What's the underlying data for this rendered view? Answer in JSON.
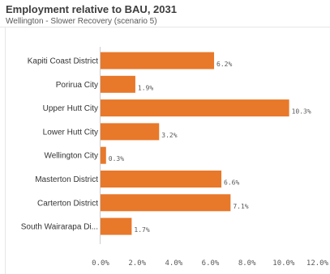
{
  "chart_data": {
    "type": "bar",
    "orientation": "horizontal",
    "title": "Employment relative to BAU, 2031",
    "subtitle": "Wellington - Slower Recovery (scenario 5)",
    "categories": [
      "Kapiti Coast District",
      "Porirua City",
      "Upper Hutt City",
      "Lower Hutt City",
      "Wellington City",
      "Masterton District",
      "Carterton District",
      "South Wairarapa Di..."
    ],
    "values": [
      6.2,
      1.9,
      10.3,
      3.2,
      0.3,
      6.6,
      7.1,
      1.7
    ],
    "value_labels": [
      "6.2%",
      "1.9%",
      "10.3%",
      "3.2%",
      "0.3%",
      "6.6%",
      "7.1%",
      "1.7%"
    ],
    "xlim": [
      0,
      12
    ],
    "xticks": [
      0,
      2,
      4,
      6,
      8,
      10,
      12
    ],
    "xtick_labels": [
      "0.0%",
      "2.0%",
      "4.0%",
      "6.0%",
      "8.0%",
      "10.0%",
      "12.0%"
    ],
    "bar_color": "#e8782a",
    "grid": false
  }
}
